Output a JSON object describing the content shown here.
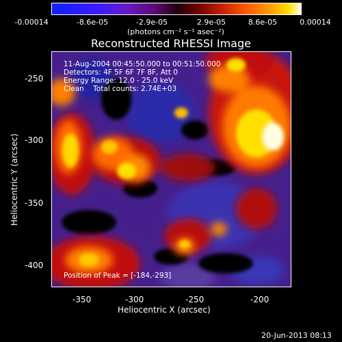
{
  "colorbar": {
    "tick_labels": [
      "-0.00014",
      "-8.6e-05",
      "-2.9e-05",
      "2.9e-05",
      "8.6e-05",
      "0.00014"
    ],
    "unit_label": "(photons cm⁻² s⁻¹ asec⁻²)"
  },
  "plot": {
    "title": "Reconstructed RHESSI Image",
    "xlabel": "Heliocentric X (arcsec)",
    "ylabel": "Heliocentric Y (arcsec)",
    "x_ticks": [
      "-350",
      "-300",
      "-250",
      "-200"
    ],
    "y_ticks": [
      "-250",
      "-300",
      "-350",
      "-400"
    ],
    "info_lines": [
      "11-Aug-2004 00:45:50.000 to 00:51:50.000",
      "Detectors: 4F 5F 6F 7F 8F, Att 0",
      "Energy Range: 12.0 - 25.0 keV",
      "Clean    Total counts: 2.74E+03"
    ],
    "peak_text": "Position of Peak = [-184,-293]"
  },
  "footer": {
    "date": "20-Jun-2013 08:13"
  },
  "colors": {
    "bg": "#000000",
    "text": "#ffffff"
  }
}
